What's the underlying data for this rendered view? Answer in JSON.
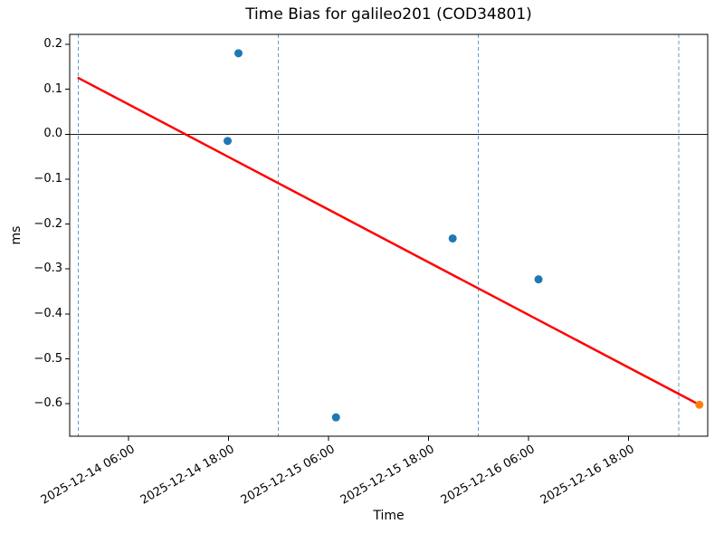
{
  "chart_data": {
    "type": "scatter",
    "title": "Time Bias for galileo201 (COD34801)",
    "xlabel": "Time",
    "ylabel": "ms",
    "x_axis": {
      "hours_origin": "2025-12-14 00:00",
      "lim_hours": [
        -1.05,
        75.5
      ],
      "ticks": [
        {
          "hours": 6,
          "label": "2025-12-14 06:00"
        },
        {
          "hours": 18,
          "label": "2025-12-14 18:00"
        },
        {
          "hours": 30,
          "label": "2025-12-15 06:00"
        },
        {
          "hours": 42,
          "label": "2025-12-15 18:00"
        },
        {
          "hours": 54,
          "label": "2025-12-16 06:00"
        },
        {
          "hours": 66,
          "label": "2025-12-16 18:00"
        }
      ],
      "day_boundary_gridlines_hours": [
        0,
        24,
        48,
        72
      ]
    },
    "y_axis": {
      "lim": [
        -0.672,
        0.222
      ],
      "ticks": [
        {
          "value": 0.2,
          "label": "0.2"
        },
        {
          "value": 0.1,
          "label": "0.1"
        },
        {
          "value": 0.0,
          "label": "0.0"
        },
        {
          "value": -0.1,
          "label": "−0.1"
        },
        {
          "value": -0.2,
          "label": "−0.2"
        },
        {
          "value": -0.3,
          "label": "−0.3"
        },
        {
          "value": -0.4,
          "label": "−0.4"
        },
        {
          "value": -0.5,
          "label": "−0.5"
        },
        {
          "value": -0.6,
          "label": "−0.6"
        }
      ]
    },
    "series": [
      {
        "name": "blue_markers",
        "color": "#1f77b4",
        "points": [
          {
            "time": "2025-12-14 17:55",
            "hours": 17.9,
            "ms": -0.015
          },
          {
            "time": "2025-12-14 19:10",
            "hours": 19.2,
            "ms": 0.18
          },
          {
            "time": "2025-12-15 06:55",
            "hours": 30.9,
            "ms": -0.63
          },
          {
            "time": "2025-12-15 20:50",
            "hours": 44.9,
            "ms": -0.232
          },
          {
            "time": "2025-12-16 07:10",
            "hours": 55.2,
            "ms": -0.323
          }
        ]
      },
      {
        "name": "orange_marker",
        "color": "#ff7f0e",
        "points": [
          {
            "time": "2025-12-17 02:30",
            "hours": 74.5,
            "ms": -0.602
          }
        ]
      }
    ],
    "trend_line": {
      "color": "#ff0000",
      "start": {
        "hours": 0.0,
        "ms": 0.125
      },
      "end": {
        "hours": 74.5,
        "ms": -0.602
      }
    },
    "zero_line": {
      "value": 0.0,
      "color": "#1a1a1a"
    },
    "style": {
      "day_gridline_color": "#5b9bd5",
      "axis_color": "#000000",
      "legend": "none",
      "grid": "vertical dashed day-boundary lines only",
      "marker_diameter_px": 9
    }
  }
}
